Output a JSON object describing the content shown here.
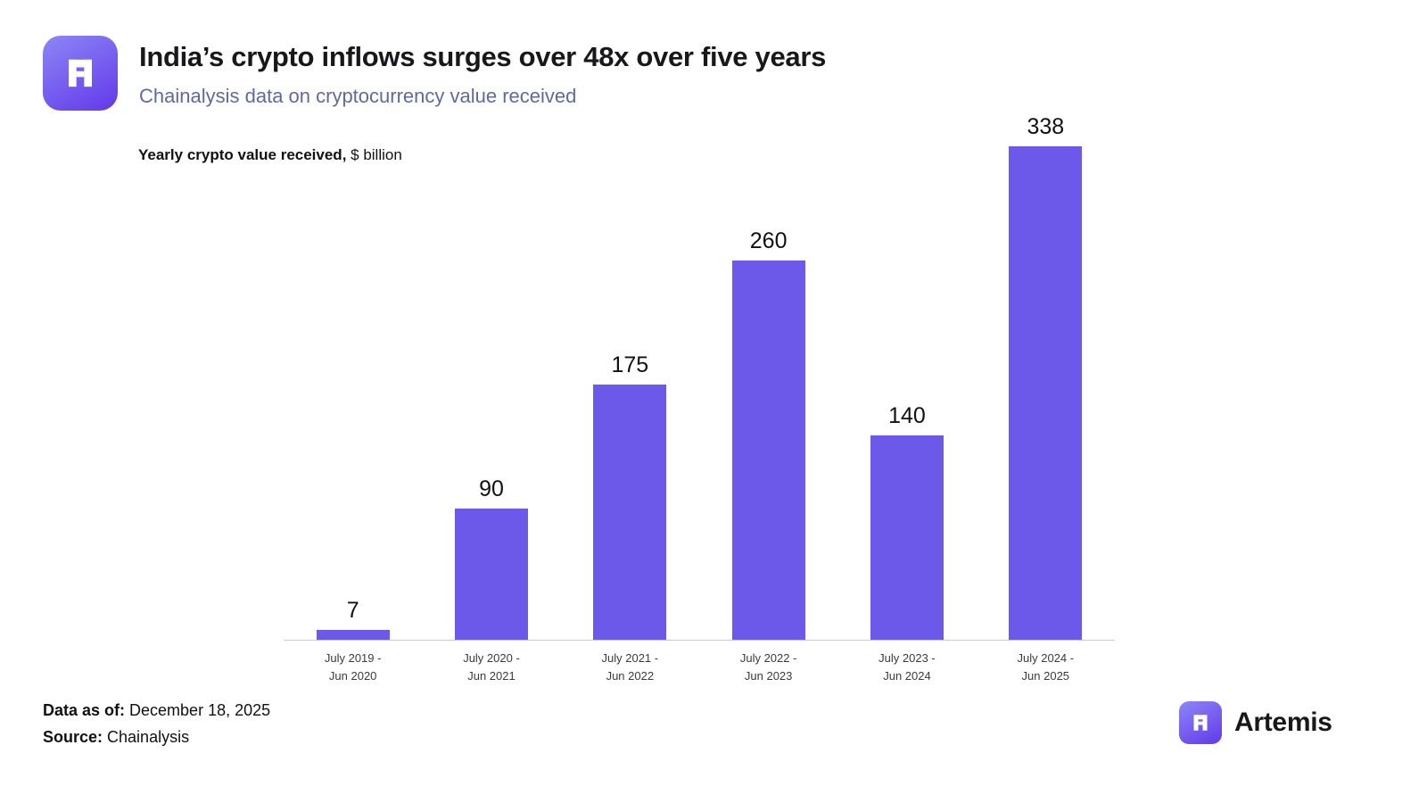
{
  "header": {
    "title": "India’s crypto inflows surges over 48x over five years",
    "subtitle": "Chainalysis data on cryptocurrency value received"
  },
  "chart_label": {
    "bold": "Yearly crypto value received,",
    "rest": " $ billion"
  },
  "chart_data": {
    "type": "bar",
    "title": "Yearly crypto value received, $ billion",
    "categories": [
      "July 2019 -\nJun 2020",
      "July 2020 -\nJun 2021",
      "July 2021 -\nJun 2022",
      "July 2022 -\nJun 2023",
      "July 2023 -\nJun 2024",
      "July 2024 -\nJun 2025"
    ],
    "values": [
      7,
      90,
      175,
      260,
      140,
      338
    ],
    "value_labels": [
      "7",
      "90",
      "175",
      "260",
      "140",
      "338"
    ],
    "xlabel": "",
    "ylabel": "Yearly crypto value received, $ billion",
    "ylim": [
      0,
      350
    ],
    "grid": false,
    "legend": "none",
    "bar_color": "#6c59e9"
  },
  "footer": {
    "data_as_of_label": "Data as of:",
    "data_as_of_value": " December 18, 2025",
    "source_label": "Source:",
    "source_value": " Chainalysis",
    "brand": "Artemis"
  },
  "icons": {
    "logo": "artemis-pixel-a-icon"
  },
  "colors": {
    "bar": "#6c59e9",
    "subtitle": "#5e6b9c",
    "logo_gradient_start": "#8c87f5",
    "logo_gradient_end": "#6338ea",
    "axis_line": "#c9ccd1"
  }
}
